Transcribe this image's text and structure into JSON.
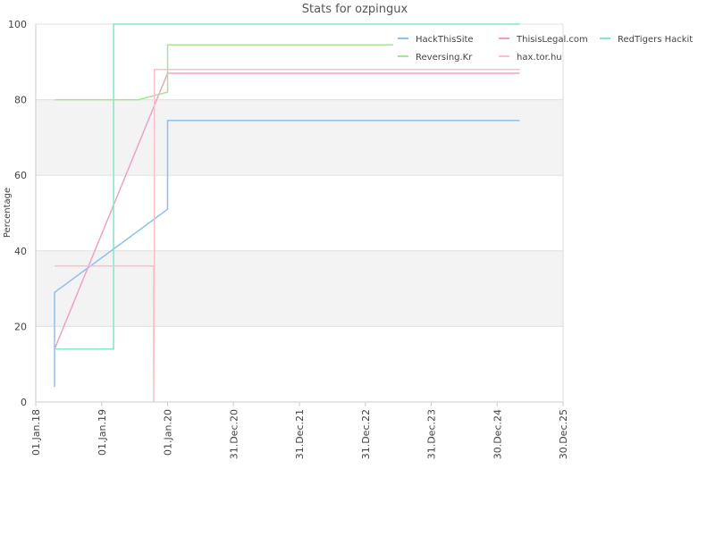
{
  "chart_data": {
    "type": "line",
    "title": "Stats for ozpingux",
    "y_label": "Percentage",
    "grid": true,
    "legend": "top-right",
    "band_color": "#f3f3f3",
    "bands": [
      [
        20,
        40
      ],
      [
        60,
        80
      ]
    ],
    "xlim": [
      "2018-01-01",
      "2025-12-30"
    ],
    "xticks": [
      {
        "value": "2018-01-01",
        "label": "01.Jan.18"
      },
      {
        "value": "2019-01-01",
        "label": "01.Jan.19"
      },
      {
        "value": "2020-01-01",
        "label": "01.Jan.20"
      },
      {
        "value": "2020-12-31",
        "label": "31.Dec.20"
      },
      {
        "value": "2021-12-31",
        "label": "31.Dec.21"
      },
      {
        "value": "2022-12-31",
        "label": "31.Dec.22"
      },
      {
        "value": "2023-12-31",
        "label": "31.Dec.23"
      },
      {
        "value": "2024-12-30",
        "label": "30.Dec.24"
      },
      {
        "value": "2025-12-30",
        "label": "30.Dec.25"
      }
    ],
    "ylim": [
      0,
      100
    ],
    "yticks": [
      0,
      20,
      40,
      60,
      80,
      100
    ],
    "series": [
      {
        "name": "HackThisSite",
        "color": "#8cc0ee",
        "x": [
          "2018-04-15",
          "2018-04-15",
          "2020-01-01",
          "2020-01-01",
          "2025-05-04"
        ],
        "values": [
          4,
          29,
          51,
          74.5,
          74.5
        ]
      },
      {
        "name": "ThisisLegal.com",
        "color": "#f0a0c8",
        "x": [
          "2018-04-15",
          "2020-01-01",
          "2025-05-04"
        ],
        "values": [
          14,
          87,
          87
        ]
      },
      {
        "name": "RedTigers Hackit",
        "color": "#80e8c8",
        "x": [
          "2018-04-15",
          "2019-03-08",
          "2019-03-08",
          "2025-05-04"
        ],
        "values": [
          14,
          14,
          100,
          100
        ]
      },
      {
        "name": "Reversing.Kr",
        "color": "#a8e498",
        "x": [
          "2018-04-15",
          "2019-07-23",
          "2020-01-01",
          "2020-01-01",
          "2023-06-03"
        ],
        "values": [
          80,
          80,
          82,
          94.5,
          94.5
        ]
      },
      {
        "name": "hax.tor.hu",
        "color": "#f8c0c8",
        "x": [
          "2018-04-15",
          "2019-10-16",
          "2019-10-16",
          "2019-10-20",
          "2019-10-20",
          "2025-05-04"
        ],
        "values": [
          36,
          36,
          0,
          40,
          88,
          88
        ]
      }
    ]
  }
}
